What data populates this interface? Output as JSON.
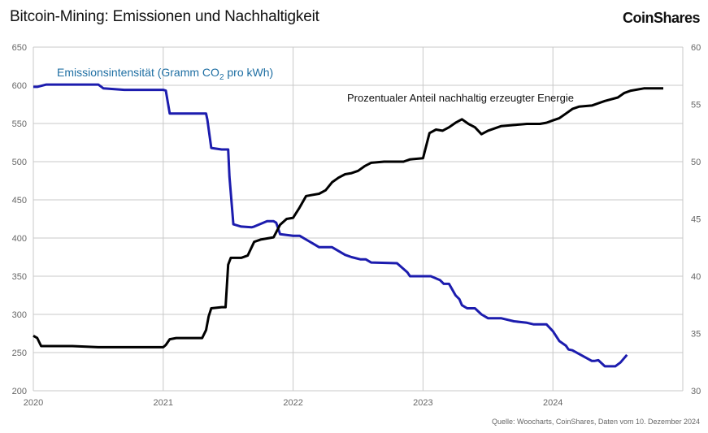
{
  "header": {
    "title": "Bitcoin-Mining: Emissionen und Nachhaltigkeit",
    "logo": "CoinShares"
  },
  "footer": {
    "source": "Quelle: Woocharts, CoinShares, Daten vom 10. Dezember 2024"
  },
  "colors": {
    "emissions": "#1c1cae",
    "renewable": "#000000",
    "emissions_label": "#1f6fa3",
    "grid": "#c8c8c8"
  },
  "chart_data": {
    "type": "line",
    "title": "Bitcoin-Mining: Emissionen und Nachhaltigkeit",
    "x_ticks": [
      "2020",
      "2021",
      "2022",
      "2023",
      "2024"
    ],
    "xlim": [
      2020.0,
      2025.0
    ],
    "left_axis": {
      "ylim": [
        200,
        650
      ],
      "ticks": [
        "200",
        "250",
        "300",
        "350",
        "400",
        "450",
        "500",
        "550",
        "600",
        "650"
      ]
    },
    "right_axis": {
      "ylim": [
        30,
        60
      ],
      "ticks": [
        "30",
        "35",
        "40",
        "45",
        "50",
        "55",
        "60"
      ]
    },
    "grid": true,
    "series": [
      {
        "name": "Emissionsintensität (Gramm CO₂ pro kWh)",
        "label_parts": [
          "Emissionsintensität (Gramm CO",
          "2",
          " pro kWh)"
        ],
        "axis": "left",
        "x": [
          2020.0,
          2020.03,
          2020.1,
          2020.3,
          2020.5,
          2020.54,
          2020.7,
          2020.95,
          2021.0,
          2021.02,
          2021.05,
          2021.2,
          2021.33,
          2021.34,
          2021.37,
          2021.45,
          2021.5,
          2021.51,
          2021.54,
          2021.6,
          2021.68,
          2021.7,
          2021.8,
          2021.85,
          2021.87,
          2021.9,
          2022.0,
          2022.05,
          2022.15,
          2022.2,
          2022.3,
          2022.4,
          2022.45,
          2022.52,
          2022.56,
          2022.6,
          2022.8,
          2022.88,
          2022.9,
          2023.0,
          2023.02,
          2023.06,
          2023.13,
          2023.16,
          2023.2,
          2023.25,
          2023.28,
          2023.3,
          2023.34,
          2023.4,
          2023.45,
          2023.5,
          2023.6,
          2023.7,
          2023.8,
          2023.85,
          2023.92,
          2023.95,
          2024.0,
          2024.05,
          2024.1,
          2024.12,
          2024.15,
          2024.3,
          2024.32,
          2024.35,
          2024.4,
          2024.48,
          2024.52,
          2024.57
        ],
        "values": [
          598,
          598,
          601,
          601,
          601,
          596,
          594,
          594,
          594,
          593,
          563,
          563,
          563,
          555,
          518,
          516,
          516,
          480,
          418,
          415,
          414,
          415,
          422,
          422,
          420,
          405,
          403,
          403,
          393,
          388,
          388,
          378,
          375,
          372,
          372,
          368,
          367,
          355,
          350,
          350,
          350,
          350,
          345,
          340,
          340,
          325,
          320,
          312,
          308,
          308,
          300,
          295,
          295,
          291,
          289,
          287,
          287,
          287,
          278,
          265,
          259,
          254,
          253,
          239,
          239,
          240,
          232,
          232,
          237,
          247
        ]
      },
      {
        "name": "Prozentualer Anteil nachhaltig erzeugter Energie",
        "axis": "right",
        "x": [
          2020.0,
          2020.03,
          2020.06,
          2020.1,
          2020.3,
          2020.5,
          2020.8,
          2021.0,
          2021.02,
          2021.05,
          2021.1,
          2021.3,
          2021.33,
          2021.35,
          2021.37,
          2021.45,
          2021.48,
          2021.5,
          2021.52,
          2021.6,
          2021.65,
          2021.7,
          2021.75,
          2021.85,
          2021.9,
          2021.95,
          2022.0,
          2022.05,
          2022.1,
          2022.2,
          2022.25,
          2022.3,
          2022.35,
          2022.4,
          2022.45,
          2022.5,
          2022.55,
          2022.6,
          2022.7,
          2022.8,
          2022.85,
          2022.9,
          2023.0,
          2023.05,
          2023.1,
          2023.15,
          2023.2,
          2023.25,
          2023.3,
          2023.35,
          2023.4,
          2023.45,
          2023.5,
          2023.6,
          2023.7,
          2023.8,
          2023.85,
          2023.9,
          2023.95,
          2024.0,
          2024.05,
          2024.1,
          2024.15,
          2024.2,
          2024.3,
          2024.4,
          2024.5,
          2024.55,
          2024.6,
          2024.7,
          2024.85
        ],
        "values": [
          34.8,
          34.6,
          33.9,
          33.9,
          33.9,
          33.8,
          33.8,
          33.8,
          34.0,
          34.5,
          34.6,
          34.6,
          35.3,
          36.5,
          37.2,
          37.3,
          37.3,
          41.0,
          41.6,
          41.6,
          41.8,
          43.0,
          43.2,
          43.4,
          44.5,
          45.0,
          45.1,
          46.0,
          47.0,
          47.2,
          47.5,
          48.2,
          48.6,
          48.9,
          49.0,
          49.2,
          49.6,
          49.9,
          50.0,
          50.0,
          50.0,
          50.2,
          50.3,
          52.5,
          52.8,
          52.7,
          53.0,
          53.4,
          53.7,
          53.3,
          53.0,
          52.4,
          52.7,
          53.1,
          53.2,
          53.3,
          53.3,
          53.3,
          53.4,
          53.6,
          53.8,
          54.2,
          54.6,
          54.8,
          54.9,
          55.3,
          55.6,
          56.0,
          56.2,
          56.4,
          56.4
        ]
      }
    ]
  }
}
